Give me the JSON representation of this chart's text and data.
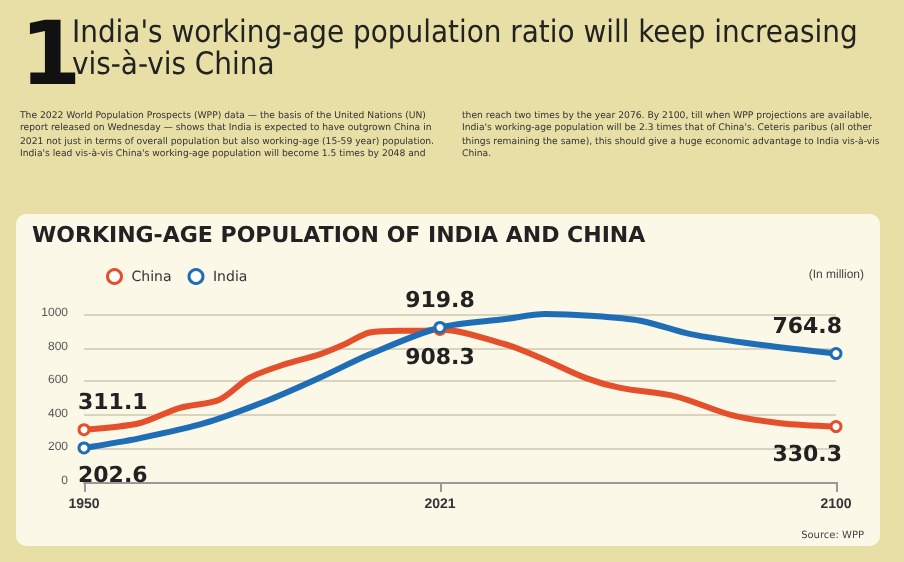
{
  "chart_data": {
    "type": "line",
    "title": "India's working-age population ratio will keep increasing vis-à-vis China",
    "subtitle": "WORKING-AGE POPULATION OF INDIA AND CHINA",
    "ylabel": "(In million)",
    "annotations": [
      "1",
      "The 2022 World Population Prospects (WPP) data — the basis of the United Nations (UN) report released on Wednesday — shows that India is expected to have outgrown China in 2021 not just in terms of overall population but also working-age (15-59 year) population. India's lead vis-à-vis China's working-age population will become 1.5 times by 2048 and then reach two times by the year 2076. By 2100, till when WPP projections are available, India's working-age population will be 2.3 times that of China's. Ceteris paribus (all other things remaining the same), this should give a huge economic advantage to India vis-à-vis China.",
      "Source: WPP"
    ],
    "series": [
      {
        "name": "China",
        "color": "#e5502c",
        "x": [
          1950,
          1961,
          1969,
          1977,
          1983,
          1990,
          1997,
          2002,
          2007,
          2013,
          2018,
          2021,
          2034,
          2041,
          2050,
          2057,
          2068,
          2079,
          2089,
          2100
        ],
        "values": [
          311.1,
          350,
          440,
          490,
          620,
          700,
          760,
          820,
          890,
          900,
          900,
          908.3,
          820,
          740,
          620,
          560,
          510,
          400,
          350,
          330.3
        ],
        "value_labels": [
          "311.1",
          null,
          null,
          null,
          null,
          null,
          null,
          null,
          null,
          null,
          null,
          "908.3",
          null,
          null,
          null,
          null,
          null,
          null,
          null,
          "330.3"
        ]
      },
      {
        "name": "India",
        "color": "#1f6db5",
        "x": [
          1950,
          1961,
          1974,
          1987,
          1997,
          2007,
          2021,
          2034,
          2042,
          2051,
          2061,
          2071,
          2084,
          2100
        ],
        "values": [
          202.6,
          260,
          350,
          490,
          620,
          760,
          919.8,
          970,
          1000,
          990,
          960,
          880,
          820,
          764.8
        ],
        "value_labels": [
          "202.6",
          null,
          null,
          null,
          null,
          null,
          "919.8",
          null,
          null,
          null,
          null,
          null,
          null,
          "764.8"
        ]
      }
    ],
    "xlim": [
      1950,
      2100
    ],
    "xticks": [
      1950,
      2021,
      2100
    ],
    "ylim": [
      0,
      1000
    ],
    "yticks": [
      0,
      200,
      400,
      600,
      800,
      1000
    ],
    "grid": "y",
    "legend": "top left",
    "line_style": "solid"
  }
}
